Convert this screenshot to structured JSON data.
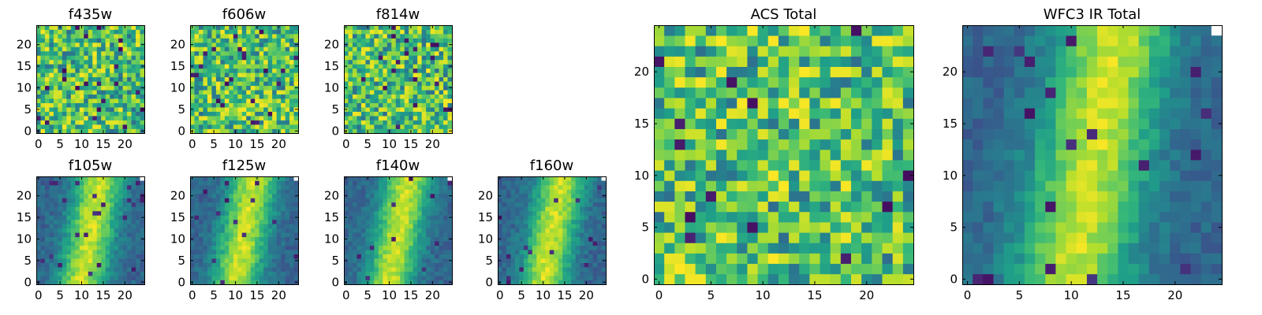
{
  "chart_data": [
    {
      "id": "f435w",
      "type": "heatmap",
      "title": "f435w",
      "grid_size": 25,
      "xlim": [
        -0.5,
        24.5
      ],
      "ylim": [
        -0.5,
        24.5
      ],
      "xticks": [
        0,
        5,
        10,
        15,
        20
      ],
      "yticks": [
        0,
        5,
        10,
        15,
        20
      ],
      "colormap": "viridis",
      "pattern": "noise",
      "seed": 11
    },
    {
      "id": "f606w",
      "type": "heatmap",
      "title": "f606w",
      "grid_size": 25,
      "xlim": [
        -0.5,
        24.5
      ],
      "ylim": [
        -0.5,
        24.5
      ],
      "xticks": [
        0,
        5,
        10,
        15,
        20
      ],
      "yticks": [
        0,
        5,
        10,
        15,
        20
      ],
      "colormap": "viridis",
      "pattern": "noise",
      "seed": 23
    },
    {
      "id": "f814w",
      "type": "heatmap",
      "title": "f814w",
      "grid_size": 25,
      "xlim": [
        -0.5,
        24.5
      ],
      "ylim": [
        -0.5,
        24.5
      ],
      "xticks": [
        0,
        5,
        10,
        15,
        20
      ],
      "yticks": [
        0,
        5,
        10,
        15,
        20
      ],
      "colormap": "viridis",
      "pattern": "noise",
      "seed": 37
    },
    {
      "id": "f105w",
      "type": "heatmap",
      "title": "f105w",
      "grid_size": 25,
      "xlim": [
        -0.5,
        24.5
      ],
      "ylim": [
        -0.5,
        24.5
      ],
      "xticks": [
        0,
        5,
        10,
        15,
        20
      ],
      "yticks": [
        0,
        5,
        10,
        15,
        20
      ],
      "colormap": "viridis",
      "pattern": "ir",
      "seed": 41
    },
    {
      "id": "f125w",
      "type": "heatmap",
      "title": "f125w",
      "grid_size": 25,
      "xlim": [
        -0.5,
        24.5
      ],
      "ylim": [
        -0.5,
        24.5
      ],
      "xticks": [
        0,
        5,
        10,
        15,
        20
      ],
      "yticks": [
        0,
        5,
        10,
        15,
        20
      ],
      "colormap": "viridis",
      "pattern": "ir",
      "seed": 53
    },
    {
      "id": "f140w",
      "type": "heatmap",
      "title": "f140w",
      "grid_size": 25,
      "xlim": [
        -0.5,
        24.5
      ],
      "ylim": [
        -0.5,
        24.5
      ],
      "xticks": [
        0,
        5,
        10,
        15,
        20
      ],
      "yticks": [
        0,
        5,
        10,
        15,
        20
      ],
      "colormap": "viridis",
      "pattern": "ir",
      "seed": 67
    },
    {
      "id": "f160w",
      "type": "heatmap",
      "title": "f160w",
      "grid_size": 25,
      "xlim": [
        -0.5,
        24.5
      ],
      "ylim": [
        -0.5,
        24.5
      ],
      "xticks": [
        0,
        5,
        10,
        15,
        20
      ],
      "yticks": [
        0,
        5,
        10,
        15,
        20
      ],
      "colormap": "viridis",
      "pattern": "ir",
      "seed": 79
    },
    {
      "id": "acs-total",
      "type": "heatmap",
      "title": "ACS Total",
      "grid_size": 25,
      "xlim": [
        -0.5,
        24.5
      ],
      "ylim": [
        -0.5,
        24.5
      ],
      "xticks": [
        0,
        5,
        10,
        15,
        20
      ],
      "yticks": [
        0,
        5,
        10,
        15,
        20
      ],
      "colormap": "viridis",
      "pattern": "noise",
      "seed": 89
    },
    {
      "id": "wfc3-ir-total",
      "type": "heatmap",
      "title": "WFC3 IR Total",
      "grid_size": 25,
      "xlim": [
        -0.5,
        24.5
      ],
      "ylim": [
        -0.5,
        24.5
      ],
      "xticks": [
        0,
        5,
        10,
        15,
        20
      ],
      "yticks": [
        0,
        5,
        10,
        15,
        20
      ],
      "colormap": "viridis",
      "pattern": "ir",
      "seed": 97
    }
  ]
}
